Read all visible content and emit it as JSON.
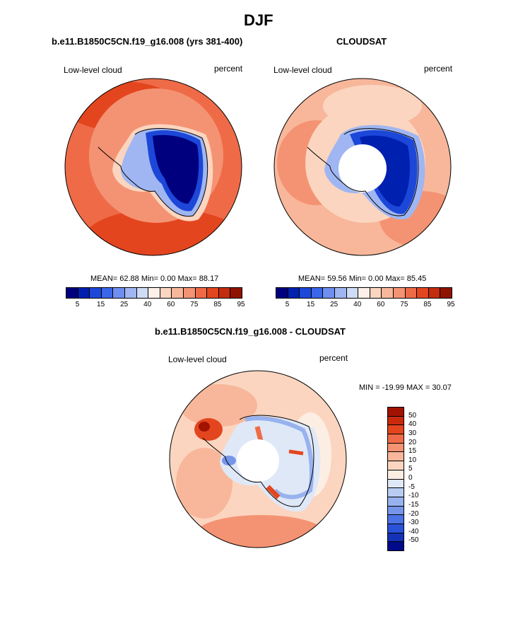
{
  "season": "DJF",
  "panels": [
    {
      "title": "b.e11.B1850C5CN.f19_g16.008 (yrs 381-400)",
      "left_label": "Low-level cloud",
      "right_label": "percent",
      "stats": "MEAN=  62.88  Min=   0.00  Max=  88.17"
    },
    {
      "title": "CLOUDSAT",
      "left_label": "Low-level cloud",
      "right_label": "percent",
      "stats": "MEAN=  59.56  Min=   0.00  Max=  85.45"
    }
  ],
  "colorbar": {
    "colors": [
      "#00007f",
      "#0020b0",
      "#1c47d8",
      "#3a66e8",
      "#6e8ef0",
      "#9fb6f2",
      "#cfdcf5",
      "#fdf0e8",
      "#fbd5c0",
      "#f8b79a",
      "#f49373",
      "#ef6b48",
      "#e3461f",
      "#c42c10",
      "#8f1300"
    ],
    "tick_labels": [
      "5",
      "15",
      "25",
      "40",
      "60",
      "75",
      "85",
      "95"
    ]
  },
  "diff_panel": {
    "title": "b.e11.B1850C5CN.f19_g16.008 - CLOUDSAT",
    "left_label": "Low-level cloud",
    "right_label": "percent",
    "minmax": "MIN = -19.99 MAX =  30.07",
    "colorbar_colors": [
      "#a21200",
      "#c92a0c",
      "#e3461f",
      "#ef6b48",
      "#f49373",
      "#f8b79a",
      "#fbd5c0",
      "#fdeee4",
      "#dfe8f7",
      "#b9cdf2",
      "#97b2ee",
      "#7595ea",
      "#4c72e6",
      "#2a52d8",
      "#1432b8",
      "#000a8a"
    ],
    "tick_labels": [
      "50",
      "40",
      "30",
      "20",
      "15",
      "10",
      "5",
      "0",
      "-5",
      "-10",
      "-15",
      "-20",
      "-30",
      "-40",
      "-50"
    ]
  }
}
